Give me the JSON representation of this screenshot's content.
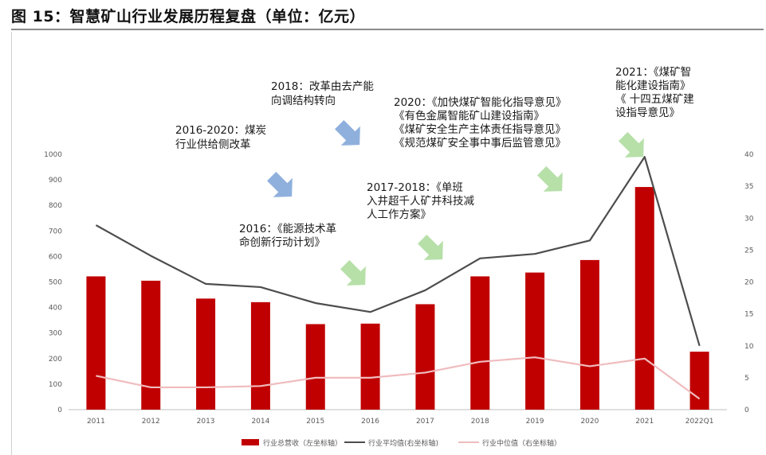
{
  "page_title": "图 15：智慧矿山行业发展历程复盘（单位：亿元）",
  "colors": {
    "bar": "#c00000",
    "avg_line": "#4d4d4d",
    "median_line": "#f0bcbe",
    "arrow_blue": "#8fb0dc",
    "arrow_green": "#b6e0a8"
  },
  "chart_data": {
    "type": "bar",
    "categories": [
      "2011",
      "2012",
      "2013",
      "2014",
      "2015",
      "2016",
      "2017",
      "2018",
      "2019",
      "2020",
      "2021",
      "2022Q1"
    ],
    "y_left": {
      "min": 0,
      "max": 1000,
      "ticks": [
        "0",
        "100",
        "200",
        "300",
        "400",
        "500",
        "600",
        "700",
        "800",
        "900",
        "1000"
      ]
    },
    "y_right": {
      "min": 0,
      "max": 40,
      "ticks": [
        "0",
        "5",
        "10",
        "15",
        "20",
        "25",
        "30",
        "35",
        "40"
      ]
    },
    "grid": false,
    "legend_position": "bottom",
    "series": [
      {
        "name": "行业总营收（左坐标轴）",
        "type": "bar",
        "axis": "left",
        "values": [
          522,
          505,
          435,
          421,
          335,
          337,
          413,
          522,
          537,
          586,
          872,
          227
        ]
      },
      {
        "name": "行业平均值(右坐标轴)",
        "type": "line",
        "axis": "right",
        "values": [
          28.9,
          24.1,
          19.7,
          19.2,
          16.7,
          15.3,
          18.7,
          23.7,
          24.4,
          26.5,
          39.6,
          10.0
        ]
      },
      {
        "name": "行业中位值（右坐标轴）",
        "type": "line",
        "axis": "right",
        "values": [
          5.3,
          3.5,
          3.5,
          3.7,
          5.0,
          5.0,
          5.8,
          7.5,
          8.2,
          6.8,
          8.0,
          1.7
        ]
      }
    ],
    "annotations": [
      {
        "lines": [
          "2016：《能源技术革",
          "命创新行动计划》"
        ],
        "arrow": "green"
      },
      {
        "lines": [
          "2016-2020：煤炭",
          "行业供给侧改革"
        ],
        "arrow": "blue"
      },
      {
        "lines": [
          "2018：改革由去产能",
          "向调结构转向"
        ],
        "arrow": "blue"
      },
      {
        "lines": [
          "2017-2018：《单班",
          "入井超千人矿井科技减",
          "人工作方案》"
        ],
        "arrow": "green"
      },
      {
        "lines": [
          "2020：《加快煤矿智能化指导意见》",
          "《有色金属智能矿山建设指南》",
          "《煤矿安全生产主体责任指导意见》",
          "《规范煤矿安全事中事后监管意见》"
        ],
        "arrow": "green"
      },
      {
        "lines": [
          "2021：《煤矿智",
          "能化建设指南》",
          "《 十四五煤矿建",
          "设指导意见》"
        ],
        "arrow": "green"
      }
    ]
  }
}
